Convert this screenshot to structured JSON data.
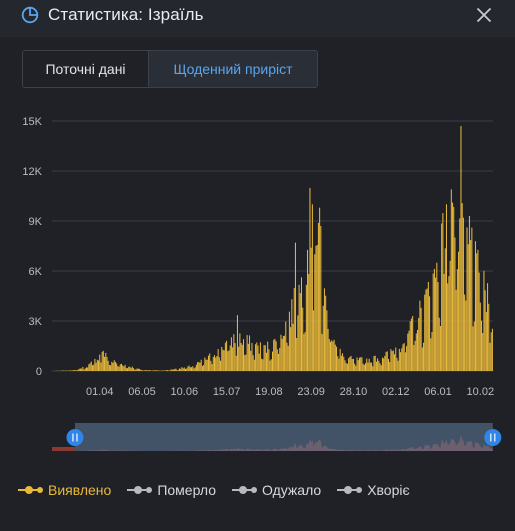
{
  "header": {
    "title": "Статистика: Ізраїль",
    "icon": "pie-chart-icon",
    "close_icon": "close-icon"
  },
  "tabs": [
    {
      "label": "Поточні дані",
      "active": false
    },
    {
      "label": "Щоденний приріст",
      "active": true
    }
  ],
  "colors": {
    "accent": "#5aa6ee",
    "bars": "#e9b93a",
    "grid": "#3a3d45",
    "axis_text": "#b9bcc3"
  },
  "chart_data": {
    "type": "bar",
    "title": "",
    "xlabel": "",
    "ylabel": "",
    "ylim": [
      0,
      15000
    ],
    "yticks": [
      {
        "value": 0,
        "label": "0"
      },
      {
        "value": 3000,
        "label": "3K"
      },
      {
        "value": 6000,
        "label": "6K"
      },
      {
        "value": 9000,
        "label": "9K"
      },
      {
        "value": 12000,
        "label": "12K"
      },
      {
        "value": 15000,
        "label": "15K"
      }
    ],
    "start_date": "2020-02-22",
    "end_date": "2021-02-20",
    "xticks": [
      {
        "date": "2020-04-01",
        "label": "01.04"
      },
      {
        "date": "2020-05-06",
        "label": "06.05"
      },
      {
        "date": "2020-06-10",
        "label": "10.06"
      },
      {
        "date": "2020-07-15",
        "label": "15.07"
      },
      {
        "date": "2020-08-19",
        "label": "19.08"
      },
      {
        "date": "2020-09-23",
        "label": "23.09"
      },
      {
        "date": "2020-10-28",
        "label": "28.10"
      },
      {
        "date": "2020-12-02",
        "label": "02.12"
      },
      {
        "date": "2021-01-06",
        "label": "06.01"
      },
      {
        "date": "2021-02-10",
        "label": "10.02"
      }
    ],
    "grid": true,
    "legend_position": "bottom-left",
    "series": [
      {
        "name": "Виявлено",
        "anchor_points": [
          [
            "2020-02-22",
            0
          ],
          [
            "2020-03-12",
            50
          ],
          [
            "2020-03-22",
            300
          ],
          [
            "2020-03-31",
            800
          ],
          [
            "2020-04-03",
            1100
          ],
          [
            "2020-04-10",
            600
          ],
          [
            "2020-04-22",
            350
          ],
          [
            "2020-05-06",
            60
          ],
          [
            "2020-05-25",
            30
          ],
          [
            "2020-06-08",
            180
          ],
          [
            "2020-06-18",
            300
          ],
          [
            "2020-06-28",
            700
          ],
          [
            "2020-07-08",
            1200
          ],
          [
            "2020-07-17",
            1800
          ],
          [
            "2020-07-25",
            1900
          ],
          [
            "2020-08-05",
            1600
          ],
          [
            "2020-08-15",
            1300
          ],
          [
            "2020-08-25",
            1700
          ],
          [
            "2020-09-02",
            2800
          ],
          [
            "2020-09-10",
            4000
          ],
          [
            "2020-09-17",
            5500
          ],
          [
            "2020-09-22",
            8500
          ],
          [
            "2020-09-28",
            7500
          ],
          [
            "2020-10-03",
            4500
          ],
          [
            "2020-10-10",
            2500
          ],
          [
            "2020-10-18",
            900
          ],
          [
            "2020-10-28",
            650
          ],
          [
            "2020-11-07",
            650
          ],
          [
            "2020-11-18",
            800
          ],
          [
            "2020-11-28",
            1100
          ],
          [
            "2020-12-06",
            1600
          ],
          [
            "2020-12-15",
            2500
          ],
          [
            "2020-12-24",
            3600
          ],
          [
            "2021-01-03",
            5500
          ],
          [
            "2021-01-10",
            7500
          ],
          [
            "2021-01-16",
            8600
          ],
          [
            "2021-01-20",
            9000
          ],
          [
            "2021-01-28",
            7500
          ],
          [
            "2021-02-05",
            6200
          ],
          [
            "2021-02-12",
            4800
          ],
          [
            "2021-02-20",
            3500
          ]
        ],
        "spikes": [
          [
            "2020-04-03",
            1150
          ],
          [
            "2020-07-24",
            3350
          ],
          [
            "2020-09-10",
            7700
          ],
          [
            "2020-09-24",
            10000
          ],
          [
            "2020-09-30",
            9800
          ],
          [
            "2020-10-01",
            8700
          ],
          [
            "2021-01-13",
            10000
          ],
          [
            "2021-01-17",
            10900
          ],
          [
            "2021-01-18",
            10100
          ],
          [
            "2021-01-25",
            14700
          ],
          [
            "2021-01-27",
            9200
          ],
          [
            "2021-02-01",
            9300
          ],
          [
            "2021-02-03",
            8600
          ]
        ]
      },
      {
        "name": "Померло"
      },
      {
        "name": "Одужало"
      },
      {
        "name": "Хворіє"
      }
    ]
  },
  "navigator": {
    "range_start": "2020-03-12",
    "range_end": "2021-02-20"
  },
  "legend": [
    {
      "label": "Виявлено",
      "color": "#e9b93a",
      "active": true
    },
    {
      "label": "Померло",
      "color": "#b7b9bf",
      "active": false
    },
    {
      "label": "Одужало",
      "color": "#b7b9bf",
      "active": false
    },
    {
      "label": "Хворіє",
      "color": "#b7b9bf",
      "active": false
    }
  ]
}
